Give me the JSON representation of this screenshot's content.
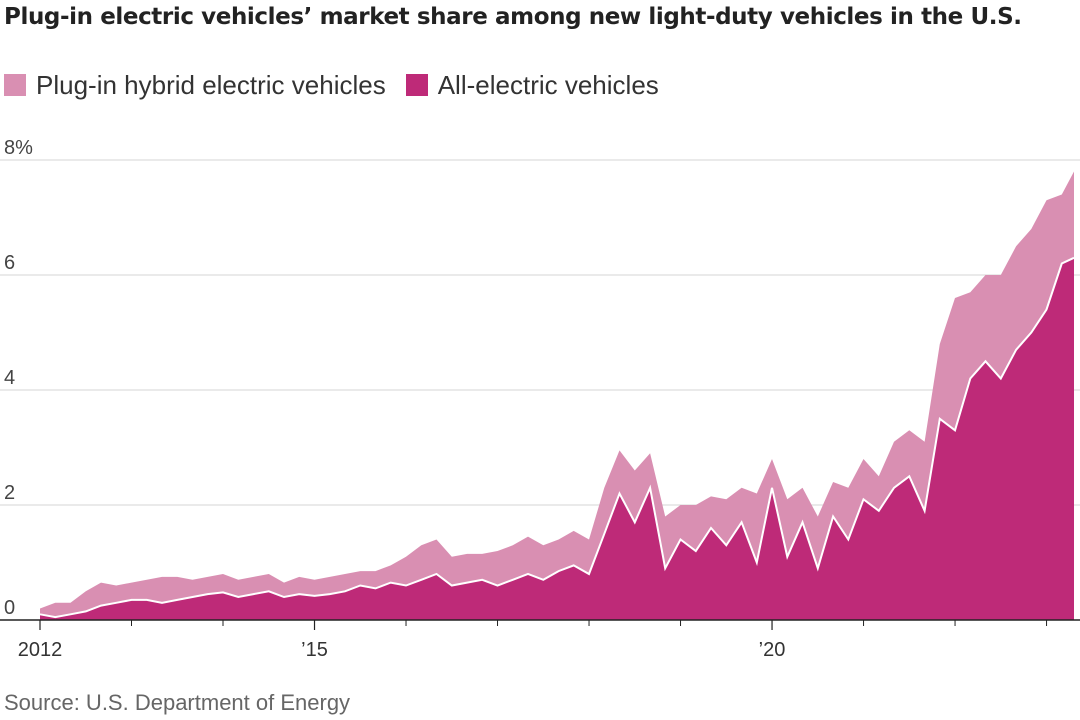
{
  "header": {
    "title": "Plug-in electric vehicles’ market share among new light-duty vehicles in the U.S."
  },
  "footer": {
    "source": "Source: U.S. Department of Energy"
  },
  "chart_data": {
    "type": "area",
    "stacked": true,
    "title": "Plug-in electric vehicles’ market share among new light-duty vehicles in the U.S.",
    "xlabel": "",
    "ylabel": "",
    "x_unit": "year",
    "xlim": [
      2012,
      2023.3
    ],
    "ylim": [
      0,
      8
    ],
    "yticks": [
      0,
      2,
      4,
      6,
      8
    ],
    "ytick_labels": [
      "0",
      "2",
      "4",
      "6",
      "8%"
    ],
    "xticks": [
      2012,
      2015,
      2020
    ],
    "xtick_labels": [
      "2012",
      "’15",
      "’20"
    ],
    "minor_xticks": [
      2013,
      2014,
      2016,
      2017,
      2018,
      2019,
      2021,
      2022,
      2023
    ],
    "grid": true,
    "legend_position": "top-left",
    "x": [
      2012.0,
      2012.167,
      2012.333,
      2012.5,
      2012.667,
      2012.833,
      2013.0,
      2013.167,
      2013.333,
      2013.5,
      2013.667,
      2013.833,
      2014.0,
      2014.167,
      2014.333,
      2014.5,
      2014.667,
      2014.833,
      2015.0,
      2015.167,
      2015.333,
      2015.5,
      2015.667,
      2015.833,
      2016.0,
      2016.167,
      2016.333,
      2016.5,
      2016.667,
      2016.833,
      2017.0,
      2017.167,
      2017.333,
      2017.5,
      2017.667,
      2017.833,
      2018.0,
      2018.167,
      2018.333,
      2018.5,
      2018.667,
      2018.833,
      2019.0,
      2019.167,
      2019.333,
      2019.5,
      2019.667,
      2019.833,
      2020.0,
      2020.167,
      2020.333,
      2020.5,
      2020.667,
      2020.833,
      2021.0,
      2021.167,
      2021.333,
      2021.5,
      2021.667,
      2021.833,
      2022.0,
      2022.167,
      2022.333,
      2022.5,
      2022.667,
      2022.833,
      2023.0,
      2023.167,
      2023.3
    ],
    "series": [
      {
        "name": "All-electric vehicles",
        "color": "#be2a78",
        "values": [
          0.1,
          0.05,
          0.1,
          0.15,
          0.25,
          0.3,
          0.35,
          0.35,
          0.3,
          0.35,
          0.4,
          0.45,
          0.48,
          0.4,
          0.45,
          0.5,
          0.4,
          0.45,
          0.42,
          0.45,
          0.5,
          0.6,
          0.55,
          0.65,
          0.6,
          0.7,
          0.8,
          0.6,
          0.65,
          0.7,
          0.6,
          0.7,
          0.8,
          0.7,
          0.85,
          0.95,
          0.8,
          1.5,
          2.2,
          1.7,
          2.3,
          0.9,
          1.4,
          1.2,
          1.6,
          1.3,
          1.7,
          1.0,
          2.3,
          1.1,
          1.7,
          0.9,
          1.8,
          1.4,
          2.1,
          1.9,
          2.3,
          2.5,
          1.9,
          3.5,
          3.3,
          4.2,
          4.5,
          4.2,
          4.7,
          5.0,
          5.4,
          6.2,
          6.3
        ]
      },
      {
        "name": "Plug-in hybrid electric vehicles",
        "color": "#d98fb2",
        "values": [
          0.1,
          0.25,
          0.2,
          0.35,
          0.4,
          0.3,
          0.3,
          0.35,
          0.45,
          0.4,
          0.3,
          0.3,
          0.32,
          0.3,
          0.3,
          0.3,
          0.25,
          0.3,
          0.28,
          0.3,
          0.3,
          0.25,
          0.3,
          0.3,
          0.5,
          0.6,
          0.6,
          0.5,
          0.5,
          0.45,
          0.6,
          0.6,
          0.65,
          0.6,
          0.55,
          0.6,
          0.6,
          0.8,
          0.75,
          0.9,
          0.6,
          0.9,
          0.6,
          0.8,
          0.55,
          0.8,
          0.6,
          1.2,
          0.5,
          1.0,
          0.6,
          0.9,
          0.6,
          0.9,
          0.7,
          0.6,
          0.8,
          0.8,
          1.2,
          1.3,
          2.3,
          1.5,
          1.5,
          1.8,
          1.8,
          1.8,
          1.9,
          1.2,
          1.5
        ]
      }
    ]
  }
}
